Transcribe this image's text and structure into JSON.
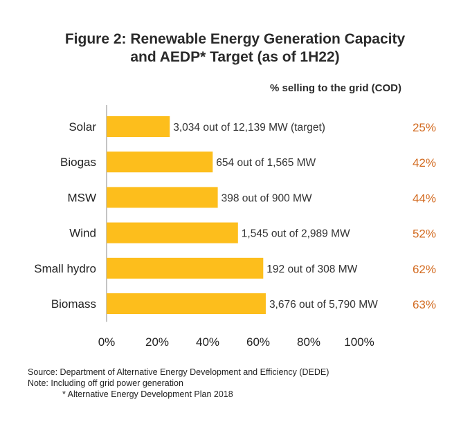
{
  "title_line1": "Figure 2: Renewable Energy Generation Capacity",
  "title_line2": "and AEDP* Target (as of 1H22)",
  "cod_header": "% selling to the grid (COD)",
  "chart_data": {
    "type": "bar",
    "orientation": "horizontal",
    "categories": [
      "Solar",
      "Biogas",
      "MSW",
      "Wind",
      "Small hydro",
      "Biomass"
    ],
    "values": [
      25,
      42,
      44,
      52,
      62,
      63
    ],
    "value_labels": [
      "25%",
      "42%",
      "44%",
      "52%",
      "62%",
      "63%"
    ],
    "annotations": [
      "3,034 out of 12,139 MW (target)",
      "654 out of 1,565 MW",
      "398 out of 900 MW",
      "1,545 out of 2,989 MW",
      "192 out of 308 MW",
      "3,676 out of 5,790 MW"
    ],
    "x_ticks": [
      "0%",
      "20%",
      "40%",
      "60%",
      "80%",
      "100%"
    ],
    "xlim": [
      0,
      100
    ],
    "grid": false,
    "colors": {
      "bar": "#FDBE1C",
      "value_label": "#D2691E",
      "axis": "#888888"
    }
  },
  "notes": {
    "source": "Source: Department of Alternative Energy Development and Efficiency (DEDE)",
    "note": "Note: Including off grid power generation",
    "footnote": "Alternative Energy Development Plan 2018",
    "footnote_mark": "*"
  }
}
